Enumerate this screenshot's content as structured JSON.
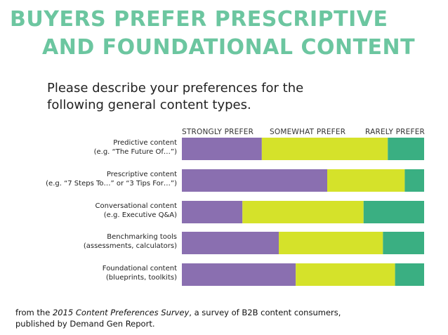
{
  "title_line1": "BUYERS PREFER PRESCRIPTIVE",
  "title_line2": "AND FOUNDATIONAL CONTENT",
  "question_line1": "Please describe your preferences for the",
  "question_line2": "following general content types.",
  "footer": {
    "prefix": "from the ",
    "survey_name": "2015 Content Preferences Survey",
    "suffix": ", a survey of B2B content consumers,",
    "line2": "published by Demand Gen Report."
  },
  "colors": {
    "title": "#6cc6a0",
    "strongly": "#8a6fb0",
    "somewhat": "#d5e22a",
    "rarely": "#3aaf82"
  },
  "chart_data": {
    "type": "bar",
    "orientation": "horizontal",
    "stacked": true,
    "legend_position": "top",
    "categories": [
      [
        "Predictive content",
        "(e.g. “The Future Of…”)"
      ],
      [
        "Prescriptive content",
        "(e.g. “7 Steps To…” or “3 Tips For…”)"
      ],
      [
        "Conversational content",
        "(e.g. Executive Q&A)"
      ],
      [
        "Benchmarking tools",
        "(assessments, calculators)"
      ],
      [
        "Foundational content",
        "(blueprints, toolkits)"
      ]
    ],
    "series": [
      {
        "name": "STRONGLY PREFER",
        "values": [
          33,
          60,
          25,
          40,
          47
        ]
      },
      {
        "name": "SOMEWHAT PREFER",
        "values": [
          52,
          32,
          50,
          43,
          41
        ]
      },
      {
        "name": "RARELY PREFER",
        "values": [
          15,
          8,
          25,
          17,
          12
        ]
      }
    ],
    "xlim": [
      0,
      100
    ]
  }
}
